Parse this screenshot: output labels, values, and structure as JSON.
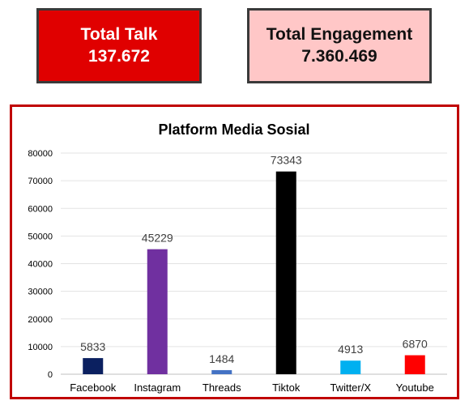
{
  "kpis": {
    "total_talk": {
      "label": "Total Talk",
      "value": "137.672",
      "color": "#e00000"
    },
    "total_engagement": {
      "label": "Total Engagement",
      "value": "7.360.469",
      "color": "#ffc7c7"
    }
  },
  "chart_data": {
    "type": "bar",
    "title": "Platform Media Sosial",
    "xlabel": "",
    "ylabel": "",
    "categories": [
      "Facebook",
      "Instagram",
      "Threads",
      "Tiktok",
      "Twitter/X",
      "Youtube"
    ],
    "values": [
      5833,
      45229,
      1484,
      73343,
      4913,
      6870
    ],
    "colors": [
      "#0b2060",
      "#7030a0",
      "#4472c4",
      "#000000",
      "#00b0f0",
      "#ff0000"
    ],
    "ylim": [
      0,
      80000
    ],
    "yticks": [
      0,
      10000,
      20000,
      30000,
      40000,
      50000,
      60000,
      70000,
      80000
    ],
    "grid": true,
    "legend": false,
    "frame_color": "#c00000"
  }
}
